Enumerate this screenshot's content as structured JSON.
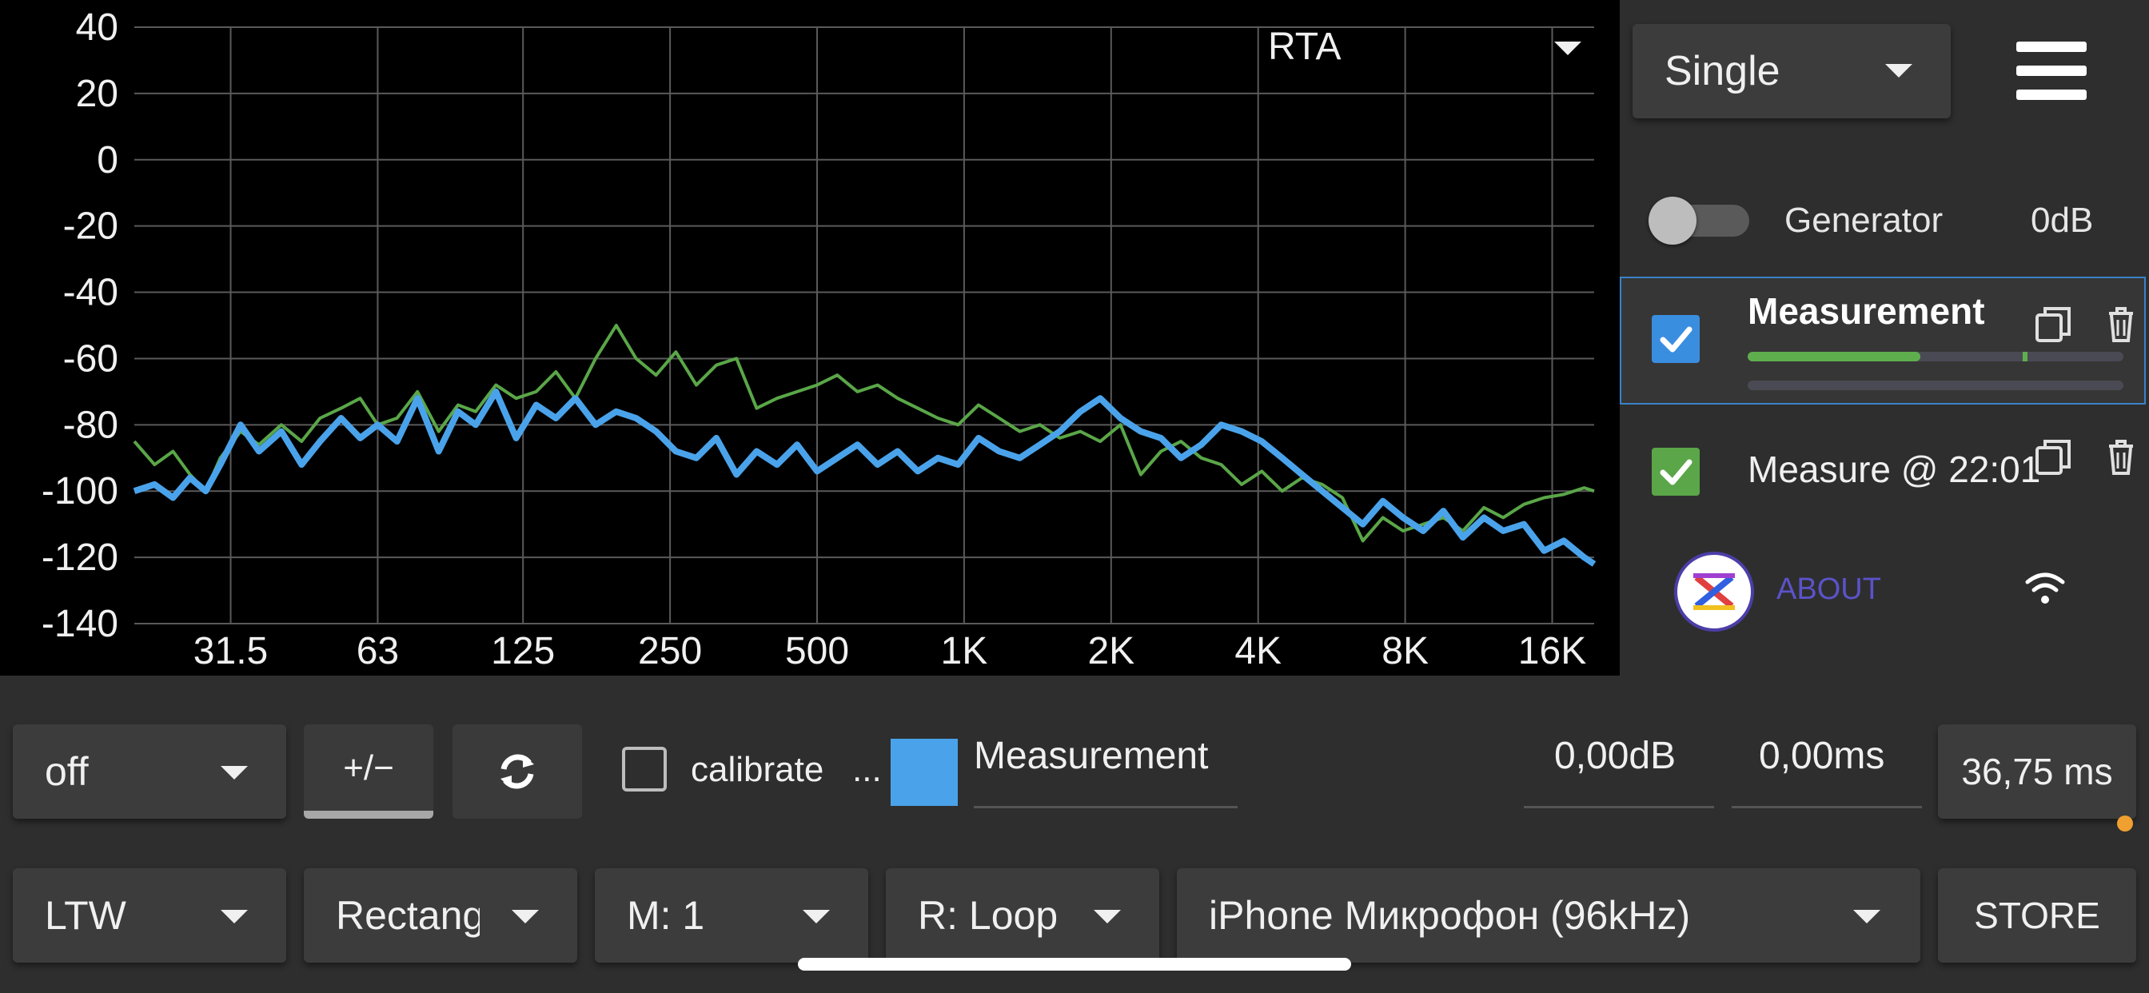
{
  "chart_data": {
    "type": "line",
    "title": "RTA",
    "xscale": "log",
    "xlim": [
      20,
      19500
    ],
    "ylim": [
      -140,
      40
    ],
    "xticks": [
      31.5,
      63,
      125,
      250,
      500,
      1000,
      2000,
      4000,
      8000,
      16000
    ],
    "xticklabels": [
      "31.5",
      "63",
      "125",
      "250",
      "500",
      "1K",
      "2K",
      "4K",
      "8K",
      "16K"
    ],
    "yticks": [
      40,
      20,
      0,
      -20,
      -40,
      -60,
      -80,
      -100,
      -120,
      -140
    ],
    "yticklabels": [
      "40",
      "20",
      "0",
      "-20",
      "-40",
      "-60",
      "-80",
      "-100",
      "-120",
      "-140"
    ],
    "grid": true,
    "series": [
      {
        "color": "#5aa648",
        "x": [
          20,
          22,
          24,
          26,
          28,
          30,
          33,
          36,
          40,
          44,
          48,
          53,
          58,
          63,
          69,
          76,
          84,
          92,
          100,
          110,
          121,
          133,
          146,
          160,
          176,
          194,
          213,
          234,
          257,
          283,
          311,
          342,
          376,
          414,
          455,
          500,
          550,
          605,
          665,
          731,
          804,
          884,
          972,
          1070,
          1180,
          1300,
          1430,
          1570,
          1730,
          1900,
          2090,
          2300,
          2530,
          2780,
          3060,
          3360,
          3700,
          4070,
          4480,
          4920,
          5410,
          5950,
          6550,
          7200,
          7920,
          8710,
          9580,
          10500,
          11600,
          12700,
          14000,
          15400,
          16900,
          18600,
          19500
        ],
        "values": [
          -85,
          -92,
          -88,
          -95,
          -100,
          -90,
          -82,
          -86,
          -80,
          -85,
          -78,
          -75,
          -72,
          -80,
          -78,
          -70,
          -82,
          -74,
          -76,
          -68,
          -72,
          -70,
          -64,
          -72,
          -60,
          -50,
          -60,
          -65,
          -58,
          -68,
          -62,
          -60,
          -75,
          -72,
          -70,
          -68,
          -65,
          -70,
          -68,
          -72,
          -75,
          -78,
          -80,
          -74,
          -78,
          -82,
          -80,
          -84,
          -82,
          -85,
          -80,
          -95,
          -88,
          -85,
          -90,
          -92,
          -98,
          -94,
          -100,
          -96,
          -98,
          -102,
          -115,
          -108,
          -112,
          -110,
          -108,
          -112,
          -105,
          -108,
          -104,
          -102,
          -101,
          -99,
          -100
        ]
      },
      {
        "color": "#4aa3ea",
        "x": [
          20,
          22,
          24,
          26,
          28,
          30,
          33,
          36,
          40,
          44,
          48,
          53,
          58,
          63,
          69,
          76,
          84,
          92,
          100,
          110,
          121,
          133,
          146,
          160,
          176,
          194,
          213,
          234,
          257,
          283,
          311,
          342,
          376,
          414,
          455,
          500,
          550,
          605,
          665,
          731,
          804,
          884,
          972,
          1070,
          1180,
          1300,
          1430,
          1570,
          1730,
          1900,
          2090,
          2300,
          2530,
          2780,
          3060,
          3360,
          3700,
          4070,
          4480,
          4920,
          5410,
          5950,
          6550,
          7200,
          7920,
          8710,
          9580,
          10500,
          11600,
          12700,
          14000,
          15400,
          16900,
          18600,
          19500
        ],
        "values": [
          -100,
          -98,
          -102,
          -96,
          -100,
          -92,
          -80,
          -88,
          -82,
          -92,
          -85,
          -78,
          -84,
          -80,
          -85,
          -72,
          -88,
          -76,
          -80,
          -70,
          -84,
          -74,
          -78,
          -72,
          -80,
          -76,
          -78,
          -82,
          -88,
          -90,
          -84,
          -95,
          -88,
          -92,
          -86,
          -94,
          -90,
          -86,
          -92,
          -88,
          -94,
          -90,
          -92,
          -84,
          -88,
          -90,
          -86,
          -82,
          -76,
          -72,
          -78,
          -82,
          -84,
          -90,
          -86,
          -80,
          -82,
          -85,
          -90,
          -95,
          -100,
          -105,
          -110,
          -103,
          -108,
          -112,
          -106,
          -114,
          -108,
          -112,
          -110,
          -118,
          -115,
          -120,
          -122
        ]
      }
    ]
  },
  "rta": {
    "label": "RTA"
  },
  "mode_select": {
    "value": "Single"
  },
  "generator": {
    "label": "Generator",
    "level": "0dB"
  },
  "measurements": [
    {
      "name": "Measurement",
      "checkbox_color": "#3a8ee0",
      "progress": 0.46
    },
    {
      "name": "Measure @ 22:01",
      "checkbox_color": "#5aa648"
    }
  ],
  "about": {
    "label": "ABOUT"
  },
  "controls": {
    "off_select": "off",
    "plus_minus": "+/−",
    "calibrate_label": "calibrate",
    "calibrate_more": "...",
    "swatch_color": "#4aa3ea",
    "measurement_name": "Measurement",
    "gain": "0,00dB",
    "delay": "0,00ms",
    "window": "36,75 ms",
    "weighting": "LTW",
    "window_type": "Rectang",
    "mode": "M: 1",
    "repeat": "R: Loop",
    "device": "iPhone Микрофон (96kHz)",
    "store": "STORE"
  }
}
